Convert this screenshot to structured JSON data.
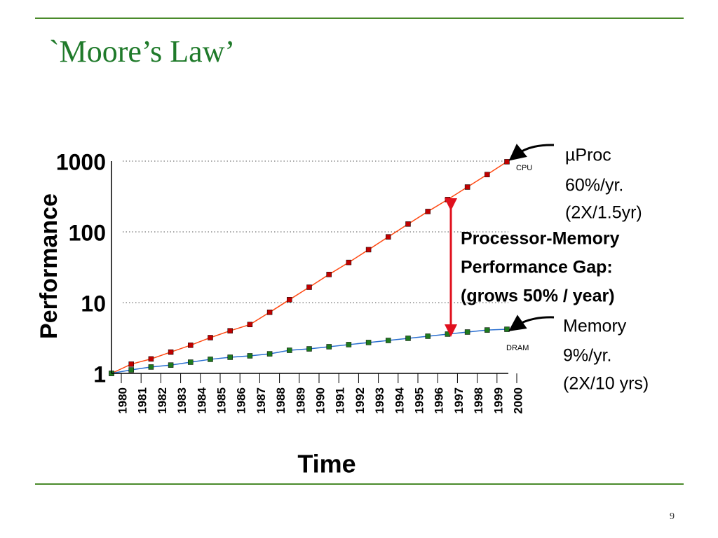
{
  "slide_title": "`Moore’s Law’",
  "page_number": "9",
  "chart_data": {
    "type": "line",
    "y_label": "Performance",
    "x_label": "Time",
    "categories": [
      "1980",
      "1981",
      "1982",
      "1983",
      "1984",
      "1985",
      "1986",
      "1987",
      "1988",
      "1989",
      "1990",
      "1991",
      "1992",
      "1993",
      "1994",
      "1995",
      "1996",
      "1997",
      "1998",
      "1999",
      "2000"
    ],
    "series": [
      {
        "name": "CPU",
        "color": "#c00000",
        "line_color": "#ff4a14",
        "values": [
          1,
          1.35,
          1.6,
          2,
          2.5,
          3.2,
          4,
          4.9,
          7.3,
          11,
          16.5,
          25,
          37,
          56,
          85,
          129,
          194,
          286,
          430,
          646,
          980
        ]
      },
      {
        "name": "DRAM",
        "color": "#1e7a1e",
        "line_color": "#2a6fd0",
        "values": [
          1,
          1.12,
          1.23,
          1.31,
          1.44,
          1.58,
          1.69,
          1.77,
          1.89,
          2.12,
          2.22,
          2.38,
          2.55,
          2.73,
          2.92,
          3.13,
          3.35,
          3.59,
          3.84,
          4.1,
          4.2
        ]
      }
    ],
    "ylim": [
      1,
      1000
    ],
    "yticks": [
      1,
      10,
      100,
      1000
    ],
    "log_scale": true,
    "grid": true,
    "annotations": {
      "cpu": [
        "µProc",
        "60%/yr.",
        "(2X/1.5yr)"
      ],
      "memory": [
        "Memory",
        "9%/yr.",
        "(2X/10 yrs)"
      ],
      "gap": [
        "Processor-Memory",
        "Performance Gap:",
        "(grows 50% / year)"
      ]
    }
  }
}
